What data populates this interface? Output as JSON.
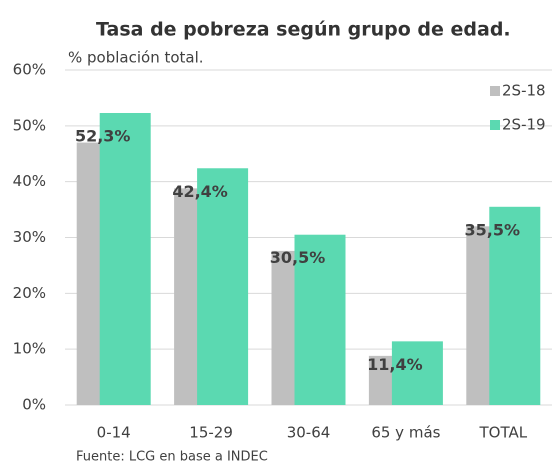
{
  "chart_data": {
    "type": "bar",
    "title": "Tasa de pobreza según grupo de edad.",
    "subtitle": "% población  total.",
    "source": "Fuente: LCG en base a INDEC",
    "categories": [
      "0-14",
      "15-29",
      "30-64",
      "65 y más",
      "TOTAL"
    ],
    "series": [
      {
        "name": "2S-18",
        "color": "#bfbfbf",
        "values": [
          47,
          38.8,
          27.6,
          8.8,
          32
        ]
      },
      {
        "name": "2S-19",
        "color": "#5bd9b1",
        "values": [
          52.3,
          42.4,
          30.5,
          11.4,
          35.5
        ],
        "value_labels": [
          "52,3%",
          "42,4%",
          "30,5%",
          "11,4%",
          "35,5%"
        ]
      }
    ],
    "ylim": [
      0,
      60
    ],
    "yticks": [
      {
        "value": 0,
        "label": "0%"
      },
      {
        "value": 10,
        "label": "10%"
      },
      {
        "value": 20,
        "label": "20%"
      },
      {
        "value": 30,
        "label": "30%"
      },
      {
        "value": 40,
        "label": "40%"
      },
      {
        "value": 50,
        "label": "50%"
      },
      {
        "value": 60,
        "label": "60%"
      }
    ],
    "grid": true,
    "legend": "right"
  }
}
